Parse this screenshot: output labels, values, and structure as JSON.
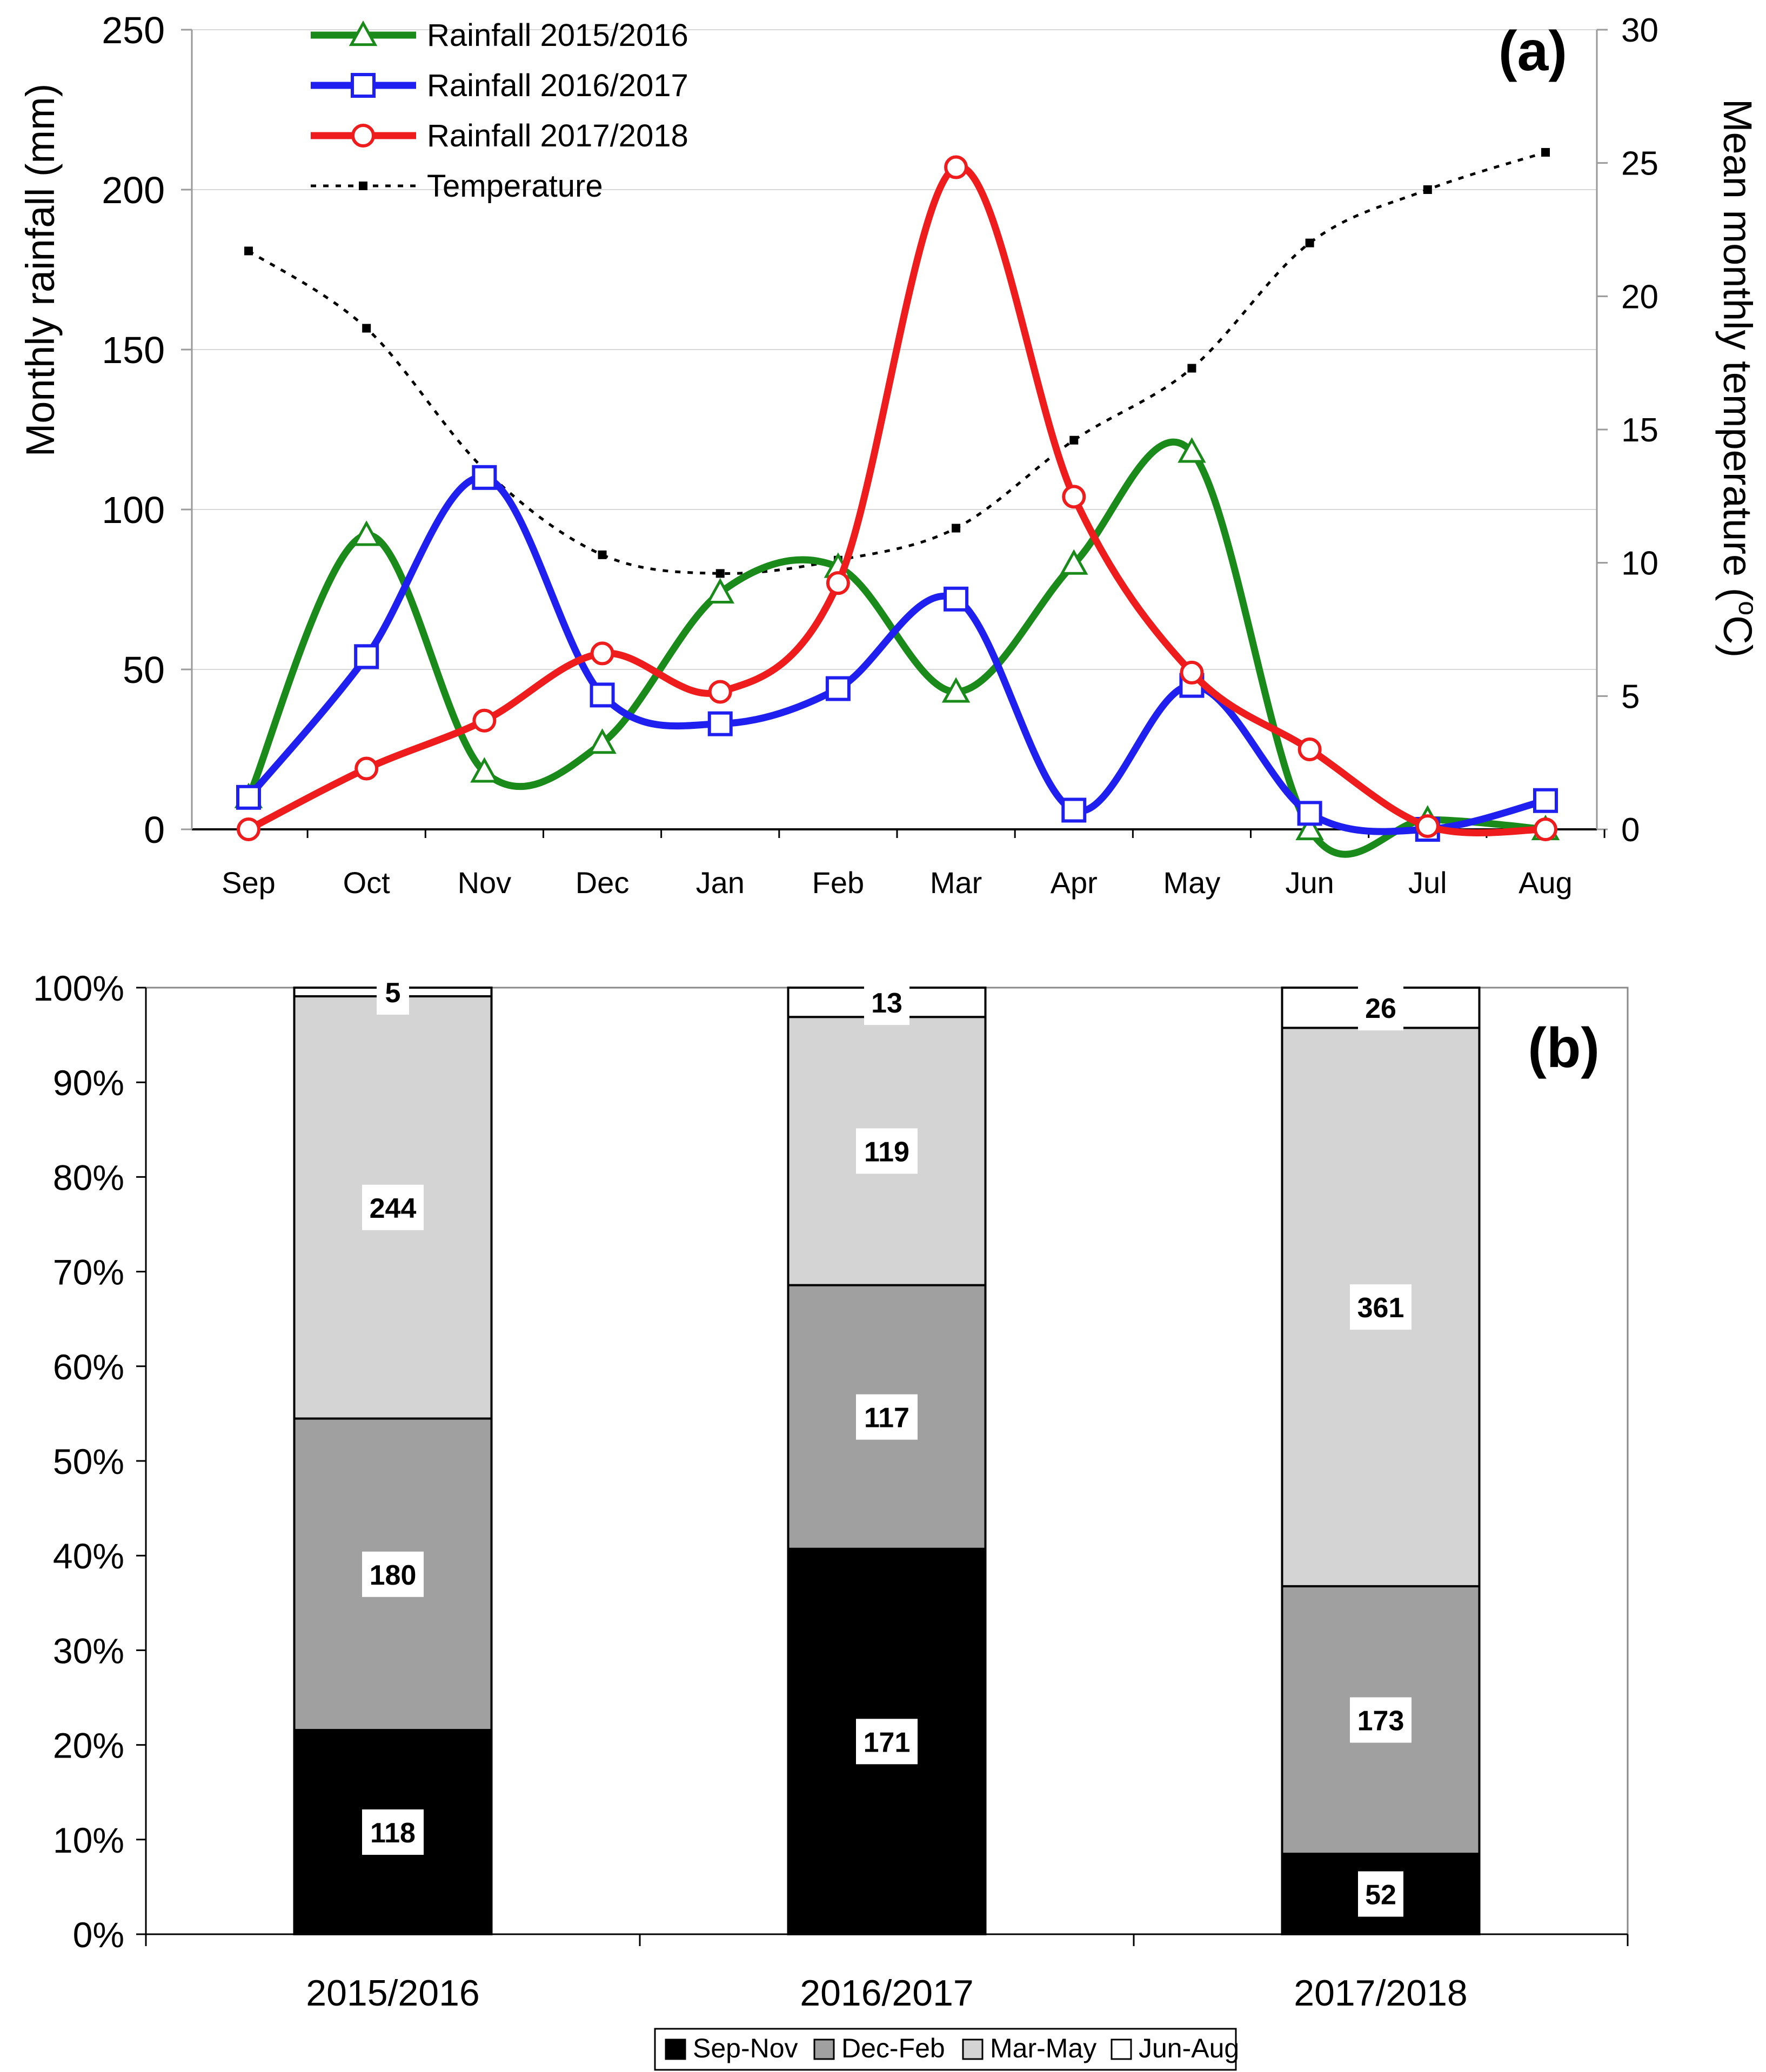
{
  "chart_data": [
    {
      "type": "line",
      "panel_label": "(a)",
      "categories": [
        "Sep",
        "Oct",
        "Nov",
        "Dec",
        "Jan",
        "Feb",
        "Mar",
        "Apr",
        "May",
        "Jun",
        "Jul",
        "Aug"
      ],
      "ylabel": "Monthly rainfall (mm)",
      "ylabel_right": "Mean monthly temperature ",
      "ylabel_right_degree": "o",
      "ylabel_right_unit": "C)",
      "ylabel_right_open": "(",
      "ylim": [
        0,
        250
      ],
      "yticks": [
        0,
        50,
        100,
        150,
        200,
        250
      ],
      "ylim_right": [
        0,
        30
      ],
      "yticks_right": [
        0,
        5,
        10,
        15,
        20,
        25,
        30
      ],
      "legend_position": "top-left",
      "series": [
        {
          "name": "Rainfall 2015/2016",
          "color": "#1a8a1a",
          "marker": "triangle",
          "axis": "left",
          "values": [
            10,
            92,
            18,
            27,
            74,
            82,
            43,
            83,
            118,
            0,
            3,
            0
          ]
        },
        {
          "name": "Rainfall 2016/2017",
          "color": "#1f1ff0",
          "marker": "square",
          "axis": "left",
          "values": [
            10,
            54,
            110,
            42,
            33,
            44,
            72,
            6,
            45,
            5,
            0,
            9
          ]
        },
        {
          "name": "Rainfall 2017/2018",
          "color": "#ee1c1c",
          "marker": "circle",
          "axis": "left",
          "values": [
            0,
            19,
            34,
            55,
            43,
            77,
            207,
            104,
            49,
            25,
            1,
            0
          ]
        },
        {
          "name": "Temperature",
          "color": "#000000",
          "marker": "small-square",
          "line": "dotted",
          "axis": "right",
          "values": [
            21.7,
            18.8,
            13.5,
            10.3,
            9.6,
            10.1,
            11.3,
            14.6,
            17.3,
            22.0,
            24.0,
            25.4
          ]
        }
      ]
    },
    {
      "type": "bar",
      "stacked": "percent",
      "panel_label": "(b)",
      "categories": [
        "2015/2016",
        "2016/2017",
        "2017/2018"
      ],
      "ylim": [
        0,
        100
      ],
      "yticks": [
        "0%",
        "10%",
        "20%",
        "30%",
        "40%",
        "50%",
        "60%",
        "70%",
        "80%",
        "90%",
        "100%"
      ],
      "legend_position": "bottom",
      "series": [
        {
          "name": "Sep-Nov",
          "color": "#000000",
          "values": [
            118,
            171,
            52
          ]
        },
        {
          "name": "Dec-Feb",
          "color": "#a0a0a0",
          "values": [
            180,
            117,
            173
          ]
        },
        {
          "name": "Mar-May",
          "color": "#d4d4d4",
          "values": [
            244,
            119,
            361
          ]
        },
        {
          "name": "Jun-Aug",
          "color": "#ffffff",
          "values": [
            5,
            13,
            26
          ]
        }
      ]
    }
  ]
}
